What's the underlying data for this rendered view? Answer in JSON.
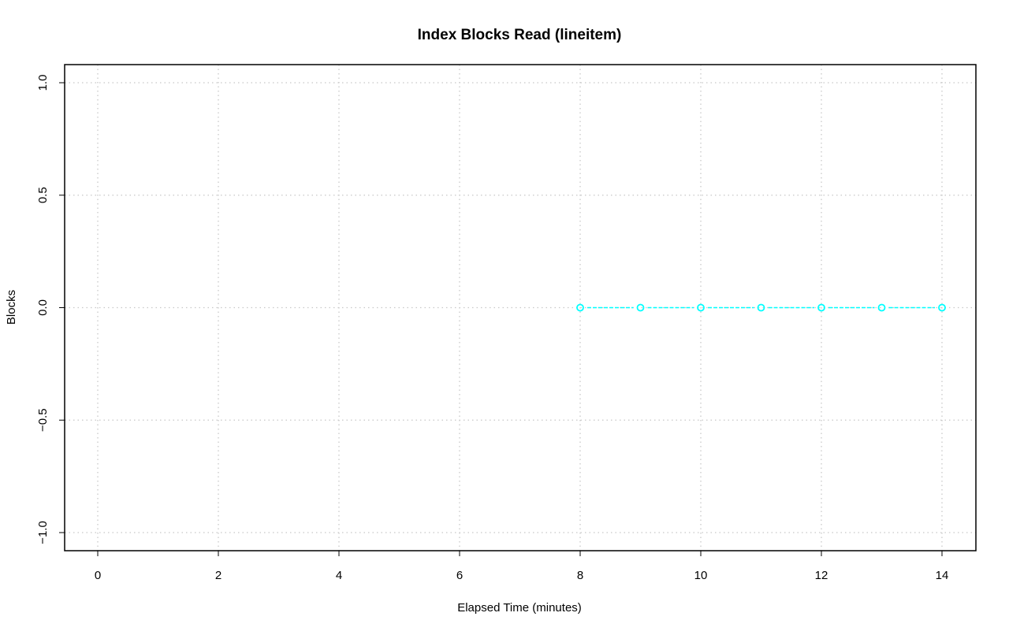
{
  "chart_data": {
    "type": "line",
    "title": "Index Blocks Read (lineitem)",
    "xlabel": "Elapsed Time (minutes)",
    "ylabel": "Blocks",
    "xlim": [
      0,
      14
    ],
    "ylim": [
      -1,
      1
    ],
    "xticks": [
      0,
      2,
      4,
      6,
      8,
      10,
      12,
      14
    ],
    "yticks": [
      -1.0,
      -0.5,
      0.0,
      0.5,
      1.0
    ],
    "xtick_labels": [
      "0",
      "2",
      "4",
      "6",
      "8",
      "10",
      "12",
      "14"
    ],
    "ytick_labels": [
      "−1.0",
      "−0.5",
      "0.0",
      "0.5",
      "1.0"
    ],
    "grid": true,
    "series": [
      {
        "color": "#00FFFF",
        "x": [
          8,
          9,
          10,
          11,
          12,
          13,
          14
        ],
        "y": [
          0,
          0,
          0,
          0,
          0,
          0,
          0
        ]
      }
    ]
  }
}
